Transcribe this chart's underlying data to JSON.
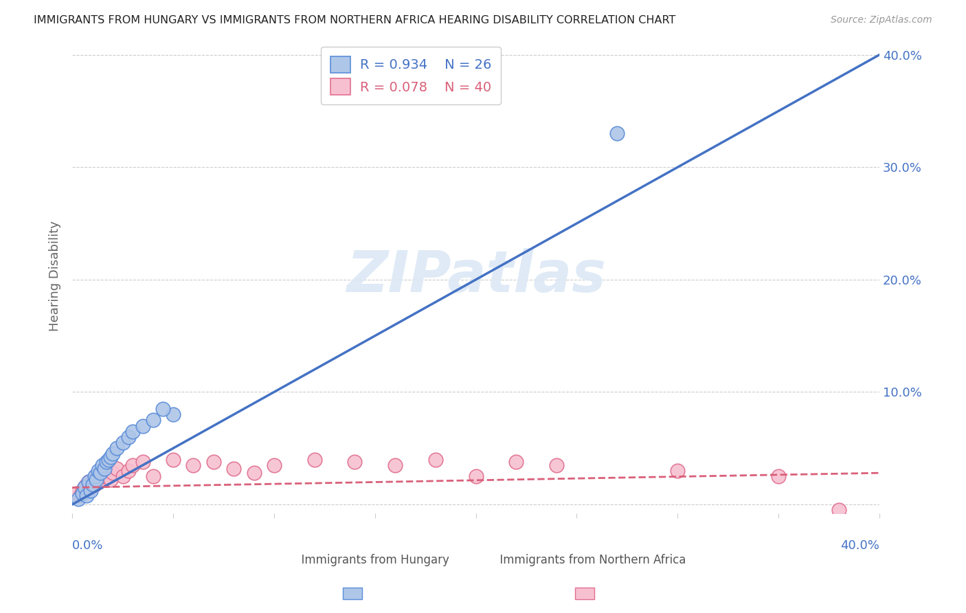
{
  "title": "IMMIGRANTS FROM HUNGARY VS IMMIGRANTS FROM NORTHERN AFRICA HEARING DISABILITY CORRELATION CHART",
  "source": "Source: ZipAtlas.com",
  "ylabel": "Hearing Disability",
  "xlim": [
    0.0,
    0.4
  ],
  "ylim": [
    -0.008,
    0.415
  ],
  "yticks": [
    0.0,
    0.1,
    0.2,
    0.3,
    0.4
  ],
  "ytick_labels_right": [
    "",
    "10.0%",
    "20.0%",
    "30.0%",
    "40.0%"
  ],
  "xticks": [
    0.0,
    0.05,
    0.1,
    0.15,
    0.2,
    0.25,
    0.3,
    0.35,
    0.4
  ],
  "hungary_R": 0.934,
  "hungary_N": 26,
  "n_africa_R": 0.078,
  "n_africa_N": 40,
  "hungary_color": "#aec6e8",
  "hungary_edge_color": "#5b8dd9",
  "hungary_line_color": "#4472c4",
  "n_africa_color": "#f7c0d0",
  "n_africa_edge_color": "#e07090",
  "n_africa_line_color": "#d9607a",
  "label_color": "#4472c4",
  "watermark": "ZIPatlas",
  "watermark_color": "#dce8f5",
  "background_color": "#ffffff",
  "hungary_line_x": [
    0.0,
    0.4
  ],
  "hungary_line_y": [
    0.0,
    0.4
  ],
  "n_africa_line_x": [
    0.0,
    0.4
  ],
  "n_africa_line_y": [
    0.015,
    0.028
  ],
  "hungary_scatter_x": [
    0.003,
    0.005,
    0.006,
    0.007,
    0.008,
    0.009,
    0.01,
    0.011,
    0.012,
    0.013,
    0.014,
    0.015,
    0.016,
    0.017,
    0.018,
    0.019,
    0.02,
    0.022,
    0.025,
    0.028,
    0.03,
    0.035,
    0.04,
    0.05,
    0.27,
    0.045
  ],
  "hungary_scatter_y": [
    0.005,
    0.01,
    0.015,
    0.008,
    0.02,
    0.012,
    0.018,
    0.025,
    0.022,
    0.03,
    0.028,
    0.035,
    0.032,
    0.038,
    0.04,
    0.042,
    0.045,
    0.05,
    0.055,
    0.06,
    0.065,
    0.07,
    0.075,
    0.08,
    0.33,
    0.085
  ],
  "n_africa_scatter_x": [
    0.002,
    0.004,
    0.005,
    0.006,
    0.007,
    0.008,
    0.009,
    0.01,
    0.011,
    0.012,
    0.013,
    0.014,
    0.015,
    0.016,
    0.017,
    0.018,
    0.019,
    0.02,
    0.022,
    0.025,
    0.028,
    0.03,
    0.035,
    0.04,
    0.05,
    0.06,
    0.07,
    0.08,
    0.09,
    0.1,
    0.12,
    0.14,
    0.16,
    0.18,
    0.2,
    0.22,
    0.24,
    0.3,
    0.35,
    0.38
  ],
  "n_africa_scatter_y": [
    0.01,
    0.008,
    0.012,
    0.015,
    0.018,
    0.02,
    0.015,
    0.022,
    0.018,
    0.025,
    0.02,
    0.022,
    0.025,
    0.028,
    0.03,
    0.025,
    0.022,
    0.028,
    0.032,
    0.025,
    0.03,
    0.035,
    0.038,
    0.025,
    0.04,
    0.035,
    0.038,
    0.032,
    0.028,
    0.035,
    0.04,
    0.038,
    0.035,
    0.04,
    0.025,
    0.038,
    0.035,
    0.03,
    0.025,
    -0.005
  ]
}
